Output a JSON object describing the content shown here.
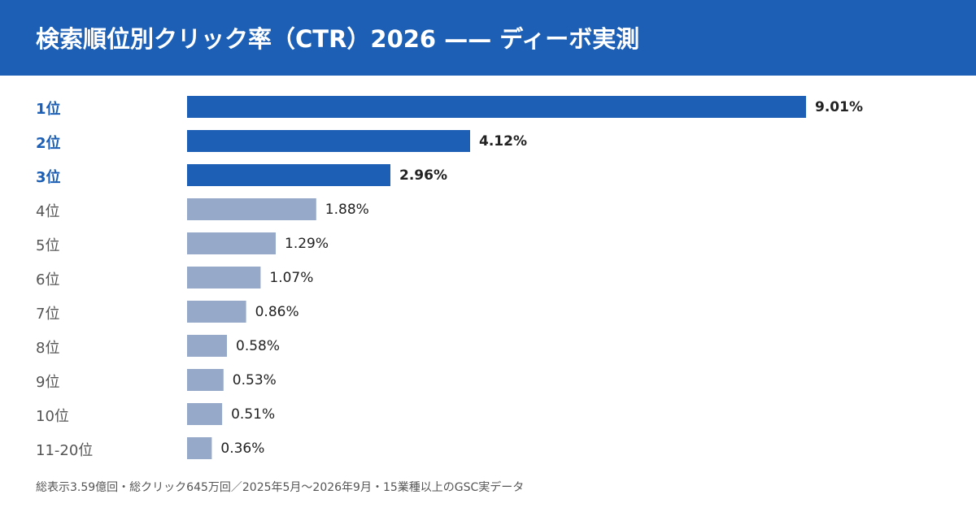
{
  "header": {
    "title": "検索順位別クリック率（CTR）2026 —— ディーボ実測"
  },
  "chart_data": {
    "type": "bar",
    "orientation": "horizontal",
    "categories": [
      "1位",
      "2位",
      "3位",
      "4位",
      "5位",
      "6位",
      "7位",
      "8位",
      "9位",
      "10位",
      "11-20位"
    ],
    "values": [
      9.01,
      4.12,
      2.96,
      1.88,
      1.29,
      1.07,
      0.86,
      0.58,
      0.53,
      0.51,
      0.36
    ],
    "value_labels": [
      "9.01%",
      "4.12%",
      "2.96%",
      "1.88%",
      "1.29%",
      "1.07%",
      "0.86%",
      "0.58%",
      "0.53%",
      "0.51%",
      "0.36%"
    ],
    "highlighted_top": 3,
    "xlim": [
      0,
      9.01
    ],
    "grid": false,
    "legend": "none",
    "colors": {
      "highlight": "#1c5fb5",
      "default": "#97a9c8",
      "highlight_label": "#1c5fb5",
      "default_label": "#555555",
      "value_text": "#222222"
    }
  },
  "footnote": "総表示3.59億回・総クリック645万回／2025年5月〜2026年9月・15業種以上のGSC実データ"
}
